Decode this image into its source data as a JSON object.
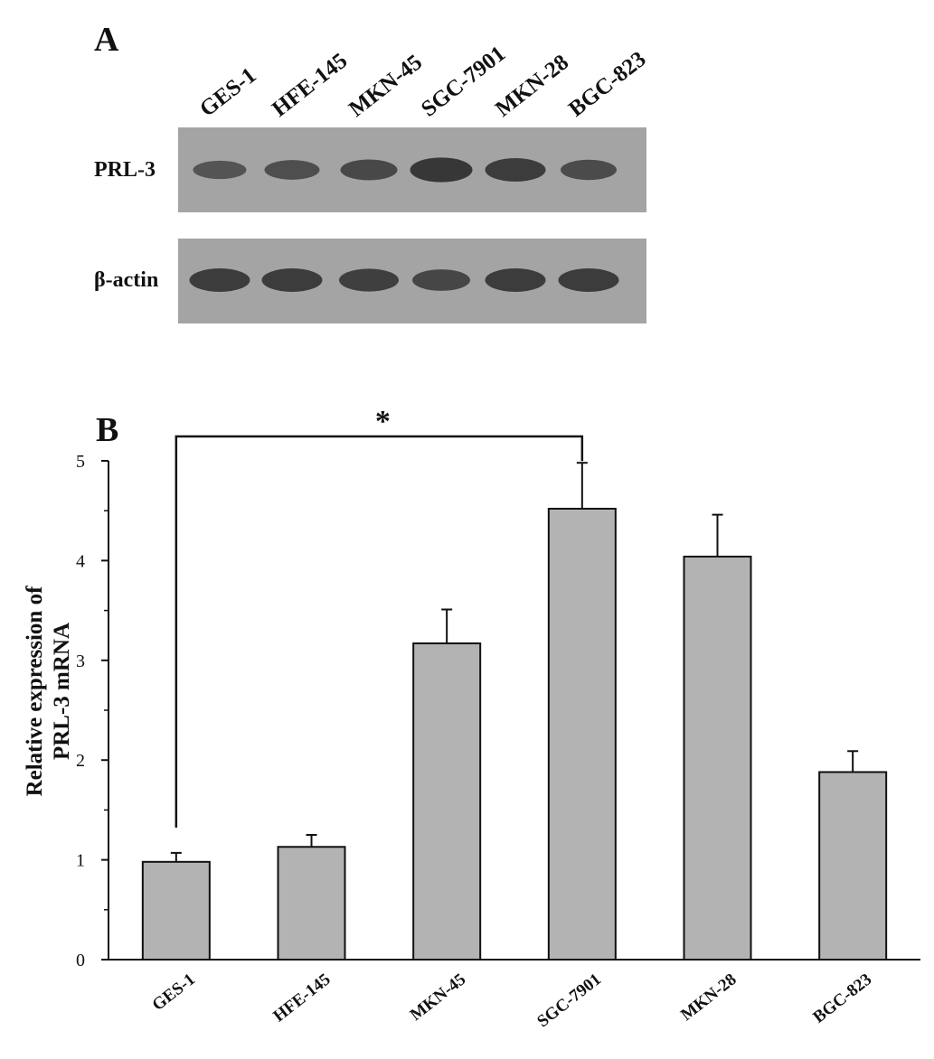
{
  "panel_a": {
    "label": "A",
    "lanes": [
      "GES-1",
      "HFE-145",
      "MKN-45",
      "SGC-7901",
      "MKN-28",
      "BGC-823"
    ],
    "rows": [
      {
        "name": "PRL-3",
        "band_intensity": [
          0.45,
          0.55,
          0.65,
          0.95,
          0.85,
          0.6
        ]
      },
      {
        "name": "β-actin",
        "band_intensity": [
          0.85,
          0.85,
          0.8,
          0.7,
          0.85,
          0.85
        ]
      }
    ],
    "membrane_color": "#a4a4a4",
    "band_color": "#2e2e2e"
  },
  "panel_b": {
    "label": "B",
    "significance_marker": "*"
  },
  "chart_data": {
    "type": "bar",
    "title": "",
    "categories": [
      "GES-1",
      "HFE-145",
      "MKN-45",
      "SGC-7901",
      "MKN-28",
      "BGC-823"
    ],
    "values": [
      0.98,
      1.13,
      3.17,
      4.52,
      4.04,
      1.88
    ],
    "errors": [
      0.09,
      0.12,
      0.34,
      0.46,
      0.42,
      0.21
    ],
    "xlabel": "",
    "ylabel_lines": [
      "Relative expression of",
      "PRL-3 mRNA"
    ],
    "ylim": [
      0,
      5
    ],
    "yticks": [
      0,
      1,
      2,
      3,
      4,
      5
    ],
    "grid": false,
    "bar_color": "#b3b3b3",
    "significance": {
      "from": "GES-1",
      "to": "SGC-7901",
      "label": "*"
    }
  }
}
